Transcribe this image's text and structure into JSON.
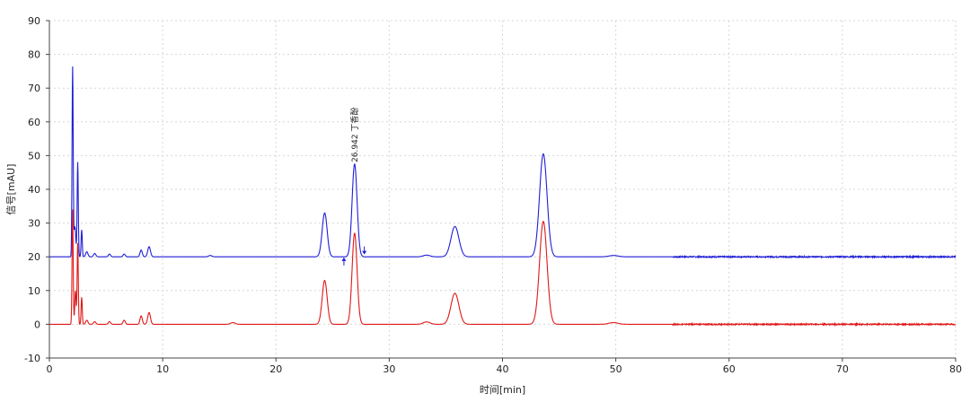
{
  "chart_data": {
    "type": "line",
    "title": "",
    "xlabel": "时间[min]",
    "ylabel": "信号[mAU]",
    "xlim": [
      0,
      80
    ],
    "ylim": [
      -10,
      90
    ],
    "x_ticks": [
      0,
      10,
      20,
      30,
      40,
      50,
      60,
      70,
      80
    ],
    "y_ticks": [
      -10,
      0,
      10,
      20,
      30,
      40,
      50,
      60,
      70,
      80,
      90
    ],
    "x_tick_labels": [
      "0",
      "10",
      "20",
      "30",
      "40",
      "50",
      "60",
      "70",
      "80"
    ],
    "y_tick_labels": [
      "-10",
      "0",
      "10",
      "20",
      "30",
      "40",
      "50",
      "60",
      "70",
      "80",
      "90"
    ],
    "grid": true,
    "series": [
      {
        "color": "#1f1fd6",
        "baseline": 20,
        "peaks": [
          {
            "t": 2.05,
            "h": 56,
            "w": 0.05
          },
          {
            "t": 2.25,
            "h": 9,
            "w": 0.08
          },
          {
            "t": 2.5,
            "h": 28,
            "w": 0.05
          },
          {
            "t": 2.85,
            "h": 8,
            "w": 0.05
          },
          {
            "t": 3.3,
            "h": 1.5,
            "w": 0.1
          },
          {
            "t": 4.0,
            "h": 1,
            "w": 0.1
          },
          {
            "t": 5.3,
            "h": 0.8,
            "w": 0.1
          },
          {
            "t": 6.6,
            "h": 0.8,
            "w": 0.1
          },
          {
            "t": 8.1,
            "h": 2,
            "w": 0.1
          },
          {
            "t": 8.8,
            "h": 3,
            "w": 0.12
          },
          {
            "t": 14.2,
            "h": 0.4,
            "w": 0.15
          },
          {
            "t": 24.3,
            "h": 13,
            "w": 0.22
          },
          {
            "t": 26.942,
            "h": 27.5,
            "w": 0.22
          },
          {
            "t": 33.3,
            "h": 0.5,
            "w": 0.3
          },
          {
            "t": 35.8,
            "h": 9,
            "w": 0.35
          },
          {
            "t": 43.6,
            "h": 30.5,
            "w": 0.33
          },
          {
            "t": 49.8,
            "h": 0.4,
            "w": 0.4
          }
        ]
      },
      {
        "color": "#e01818",
        "baseline": 0,
        "peaks": [
          {
            "t": 2.05,
            "h": 34,
            "w": 0.05
          },
          {
            "t": 2.3,
            "h": 10,
            "w": 0.06
          },
          {
            "t": 2.5,
            "h": 24,
            "w": 0.05
          },
          {
            "t": 2.85,
            "h": 8,
            "w": 0.05
          },
          {
            "t": 3.3,
            "h": 1.2,
            "w": 0.1
          },
          {
            "t": 4.0,
            "h": 0.8,
            "w": 0.1
          },
          {
            "t": 5.3,
            "h": 0.8,
            "w": 0.1
          },
          {
            "t": 6.6,
            "h": 1.2,
            "w": 0.1
          },
          {
            "t": 8.1,
            "h": 2.5,
            "w": 0.1
          },
          {
            "t": 8.8,
            "h": 3.5,
            "w": 0.12
          },
          {
            "t": 16.2,
            "h": 0.5,
            "w": 0.2
          },
          {
            "t": 24.3,
            "h": 13,
            "w": 0.22
          },
          {
            "t": 26.942,
            "h": 27,
            "w": 0.22
          },
          {
            "t": 33.3,
            "h": 0.7,
            "w": 0.3
          },
          {
            "t": 35.8,
            "h": 9.2,
            "w": 0.35
          },
          {
            "t": 43.6,
            "h": 30.5,
            "w": 0.33
          },
          {
            "t": 49.8,
            "h": 0.5,
            "w": 0.4
          }
        ]
      }
    ],
    "annotations": [
      {
        "text": "26.942 丁香酚",
        "x": 26.942,
        "y": 48
      }
    ],
    "integration_markers": [
      {
        "x": 26.0,
        "y": 18.5,
        "direction": "up"
      },
      {
        "x": 27.8,
        "y": 22,
        "direction": "down"
      }
    ]
  }
}
